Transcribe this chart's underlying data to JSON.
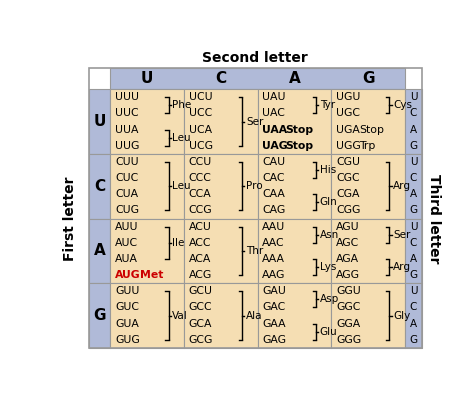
{
  "title_top": "Second letter",
  "title_left": "First letter",
  "title_right": "Third letter",
  "second_letters": [
    "U",
    "C",
    "A",
    "G"
  ],
  "first_letters": [
    "U",
    "C",
    "A",
    "G"
  ],
  "third_letters": [
    "U",
    "C",
    "A",
    "G"
  ],
  "bg_header": "#b0bad8",
  "bg_cell": "#f5deb3",
  "grid_color": "#999999",
  "red_color": "#cc0000",
  "cells": [
    {
      "row": 0,
      "col": 0,
      "lines": [
        {
          "codon": "UUU",
          "amino": "Phe",
          "bracket_top": true,
          "bracket_bottom": false,
          "bold": false,
          "red": false
        },
        {
          "codon": "UUC",
          "amino": "",
          "bracket_top": false,
          "bracket_bottom": true,
          "bold": false,
          "red": false
        },
        {
          "codon": "UUA",
          "amino": "Leu",
          "bracket_top": true,
          "bracket_bottom": false,
          "bold": false,
          "red": false
        },
        {
          "codon": "UUG",
          "amino": "",
          "bracket_top": false,
          "bracket_bottom": true,
          "bold": false,
          "red": false
        }
      ],
      "brackets": [
        [
          0,
          1,
          "Phe"
        ],
        [
          2,
          3,
          "Leu"
        ]
      ]
    },
    {
      "row": 0,
      "col": 1,
      "lines": [
        {
          "codon": "UCU",
          "amino": "",
          "bracket_top": false,
          "bracket_bottom": false,
          "bold": false,
          "red": false
        },
        {
          "codon": "UCC",
          "amino": "",
          "bracket_top": false,
          "bracket_bottom": false,
          "bold": false,
          "red": false
        },
        {
          "codon": "UCA",
          "amino": "Ser",
          "bracket_top": false,
          "bracket_bottom": false,
          "bold": false,
          "red": false
        },
        {
          "codon": "UCG",
          "amino": "",
          "bracket_top": false,
          "bracket_bottom": false,
          "bold": false,
          "red": false
        }
      ],
      "brackets": [
        [
          0,
          3,
          "Ser"
        ]
      ]
    },
    {
      "row": 0,
      "col": 2,
      "lines": [
        {
          "codon": "UAU",
          "amino": "Tyr",
          "bracket_top": true,
          "bracket_bottom": false,
          "bold": false,
          "red": false
        },
        {
          "codon": "UAC",
          "amino": "",
          "bracket_top": false,
          "bracket_bottom": true,
          "bold": false,
          "red": false
        },
        {
          "codon": "UAA",
          "amino": "Stop",
          "bracket_top": false,
          "bracket_bottom": false,
          "bold": true,
          "red": false
        },
        {
          "codon": "UAG",
          "amino": "Stop",
          "bracket_top": false,
          "bracket_bottom": false,
          "bold": true,
          "red": false
        }
      ],
      "brackets": [
        [
          0,
          1,
          "Tyr"
        ]
      ],
      "stop_lines": [
        2,
        3
      ]
    },
    {
      "row": 0,
      "col": 3,
      "lines": [
        {
          "codon": "UGU",
          "amino": "Cys",
          "bracket_top": true,
          "bracket_bottom": false,
          "bold": false,
          "red": false
        },
        {
          "codon": "UGC",
          "amino": "",
          "bracket_top": false,
          "bracket_bottom": true,
          "bold": false,
          "red": false
        },
        {
          "codon": "UGA",
          "amino": "Stop",
          "bracket_top": false,
          "bracket_bottom": false,
          "bold": false,
          "red": false
        },
        {
          "codon": "UGG",
          "amino": "Trp",
          "bracket_top": false,
          "bracket_bottom": false,
          "bold": false,
          "red": false
        }
      ],
      "brackets": [
        [
          0,
          1,
          "Cys"
        ]
      ],
      "inline_lines": [
        2,
        3
      ]
    },
    {
      "row": 1,
      "col": 0,
      "lines": [
        {
          "codon": "CUU",
          "amino": "",
          "bracket_top": false,
          "bracket_bottom": false,
          "bold": false,
          "red": false
        },
        {
          "codon": "CUC",
          "amino": "",
          "bracket_top": false,
          "bracket_bottom": false,
          "bold": false,
          "red": false
        },
        {
          "codon": "CUA",
          "amino": "Leu",
          "bracket_top": false,
          "bracket_bottom": false,
          "bold": false,
          "red": false
        },
        {
          "codon": "CUG",
          "amino": "",
          "bracket_top": false,
          "bracket_bottom": false,
          "bold": false,
          "red": false
        }
      ],
      "brackets": [
        [
          0,
          3,
          "Leu"
        ]
      ]
    },
    {
      "row": 1,
      "col": 1,
      "lines": [
        {
          "codon": "CCU",
          "amino": "",
          "bracket_top": false,
          "bracket_bottom": false,
          "bold": false,
          "red": false
        },
        {
          "codon": "CCC",
          "amino": "",
          "bracket_top": false,
          "bracket_bottom": false,
          "bold": false,
          "red": false
        },
        {
          "codon": "CCA",
          "amino": "Pro",
          "bracket_top": false,
          "bracket_bottom": false,
          "bold": false,
          "red": false
        },
        {
          "codon": "CCG",
          "amino": "",
          "bracket_top": false,
          "bracket_bottom": false,
          "bold": false,
          "red": false
        }
      ],
      "brackets": [
        [
          0,
          3,
          "Pro"
        ]
      ]
    },
    {
      "row": 1,
      "col": 2,
      "lines": [
        {
          "codon": "CAU",
          "amino": "His",
          "bracket_top": true,
          "bracket_bottom": false,
          "bold": false,
          "red": false
        },
        {
          "codon": "CAC",
          "amino": "",
          "bracket_top": false,
          "bracket_bottom": true,
          "bold": false,
          "red": false
        },
        {
          "codon": "CAA",
          "amino": "Gln",
          "bracket_top": true,
          "bracket_bottom": false,
          "bold": false,
          "red": false
        },
        {
          "codon": "CAG",
          "amino": "",
          "bracket_top": false,
          "bracket_bottom": true,
          "bold": false,
          "red": false
        }
      ],
      "brackets": [
        [
          0,
          1,
          "His"
        ],
        [
          2,
          3,
          "Gln"
        ]
      ]
    },
    {
      "row": 1,
      "col": 3,
      "lines": [
        {
          "codon": "CGU",
          "amino": "",
          "bracket_top": false,
          "bracket_bottom": false,
          "bold": false,
          "red": false
        },
        {
          "codon": "CGC",
          "amino": "",
          "bracket_top": false,
          "bracket_bottom": false,
          "bold": false,
          "red": false
        },
        {
          "codon": "CGA",
          "amino": "Arg",
          "bracket_top": false,
          "bracket_bottom": false,
          "bold": false,
          "red": false
        },
        {
          "codon": "CGG",
          "amino": "",
          "bracket_top": false,
          "bracket_bottom": false,
          "bold": false,
          "red": false
        }
      ],
      "brackets": [
        [
          0,
          3,
          "Arg"
        ]
      ]
    },
    {
      "row": 2,
      "col": 0,
      "lines": [
        {
          "codon": "AUU",
          "amino": "Ile",
          "bracket_top": true,
          "bracket_bottom": false,
          "bold": false,
          "red": false
        },
        {
          "codon": "AUC",
          "amino": "",
          "bracket_top": false,
          "bracket_bottom": false,
          "bold": false,
          "red": false
        },
        {
          "codon": "AUA",
          "amino": "",
          "bracket_top": false,
          "bracket_bottom": true,
          "bold": false,
          "red": false
        },
        {
          "codon": "AUG",
          "amino": "Met",
          "bracket_top": false,
          "bracket_bottom": false,
          "bold": true,
          "red": true
        }
      ],
      "brackets": [
        [
          0,
          2,
          "Ile"
        ]
      ],
      "aug_met": true
    },
    {
      "row": 2,
      "col": 1,
      "lines": [
        {
          "codon": "ACU",
          "amino": "",
          "bracket_top": false,
          "bracket_bottom": false,
          "bold": false,
          "red": false
        },
        {
          "codon": "ACC",
          "amino": "",
          "bracket_top": false,
          "bracket_bottom": false,
          "bold": false,
          "red": false
        },
        {
          "codon": "ACA",
          "amino": "Thr",
          "bracket_top": false,
          "bracket_bottom": false,
          "bold": false,
          "red": false
        },
        {
          "codon": "ACG",
          "amino": "",
          "bracket_top": false,
          "bracket_bottom": false,
          "bold": false,
          "red": false
        }
      ],
      "brackets": [
        [
          0,
          3,
          "Thr"
        ]
      ]
    },
    {
      "row": 2,
      "col": 2,
      "lines": [
        {
          "codon": "AAU",
          "amino": "Asn",
          "bracket_top": true,
          "bracket_bottom": false,
          "bold": false,
          "red": false
        },
        {
          "codon": "AAC",
          "amino": "",
          "bracket_top": false,
          "bracket_bottom": true,
          "bold": false,
          "red": false
        },
        {
          "codon": "AAA",
          "amino": "Lys",
          "bracket_top": true,
          "bracket_bottom": false,
          "bold": false,
          "red": false
        },
        {
          "codon": "AAG",
          "amino": "",
          "bracket_top": false,
          "bracket_bottom": true,
          "bold": false,
          "red": false
        }
      ],
      "brackets": [
        [
          0,
          1,
          "Asn"
        ],
        [
          2,
          3,
          "Lys"
        ]
      ]
    },
    {
      "row": 2,
      "col": 3,
      "lines": [
        {
          "codon": "AGU",
          "amino": "Ser",
          "bracket_top": true,
          "bracket_bottom": false,
          "bold": false,
          "red": false
        },
        {
          "codon": "AGC",
          "amino": "",
          "bracket_top": false,
          "bracket_bottom": true,
          "bold": false,
          "red": false
        },
        {
          "codon": "AGA",
          "amino": "Arg",
          "bracket_top": true,
          "bracket_bottom": false,
          "bold": false,
          "red": false
        },
        {
          "codon": "AGG",
          "amino": "",
          "bracket_top": false,
          "bracket_bottom": true,
          "bold": false,
          "red": false
        }
      ],
      "brackets": [
        [
          0,
          1,
          "Ser"
        ],
        [
          2,
          3,
          "Arg"
        ]
      ]
    },
    {
      "row": 3,
      "col": 0,
      "lines": [
        {
          "codon": "GUU",
          "amino": "",
          "bracket_top": false,
          "bracket_bottom": false,
          "bold": false,
          "red": false
        },
        {
          "codon": "GUC",
          "amino": "",
          "bracket_top": false,
          "bracket_bottom": false,
          "bold": false,
          "red": false
        },
        {
          "codon": "GUA",
          "amino": "Val",
          "bracket_top": false,
          "bracket_bottom": false,
          "bold": false,
          "red": false
        },
        {
          "codon": "GUG",
          "amino": "",
          "bracket_top": false,
          "bracket_bottom": false,
          "bold": false,
          "red": false
        }
      ],
      "brackets": [
        [
          0,
          3,
          "Val"
        ]
      ]
    },
    {
      "row": 3,
      "col": 1,
      "lines": [
        {
          "codon": "GCU",
          "amino": "",
          "bracket_top": false,
          "bracket_bottom": false,
          "bold": false,
          "red": false
        },
        {
          "codon": "GCC",
          "amino": "",
          "bracket_top": false,
          "bracket_bottom": false,
          "bold": false,
          "red": false
        },
        {
          "codon": "GCA",
          "amino": "Ala",
          "bracket_top": false,
          "bracket_bottom": false,
          "bold": false,
          "red": false
        },
        {
          "codon": "GCG",
          "amino": "",
          "bracket_top": false,
          "bracket_bottom": false,
          "bold": false,
          "red": false
        }
      ],
      "brackets": [
        [
          0,
          3,
          "Ala"
        ]
      ]
    },
    {
      "row": 3,
      "col": 2,
      "lines": [
        {
          "codon": "GAU",
          "amino": "Asp",
          "bracket_top": true,
          "bracket_bottom": false,
          "bold": false,
          "red": false
        },
        {
          "codon": "GAC",
          "amino": "",
          "bracket_top": false,
          "bracket_bottom": true,
          "bold": false,
          "red": false
        },
        {
          "codon": "GAA",
          "amino": "Glu",
          "bracket_top": true,
          "bracket_bottom": false,
          "bold": false,
          "red": false
        },
        {
          "codon": "GAG",
          "amino": "",
          "bracket_top": false,
          "bracket_bottom": true,
          "bold": false,
          "red": false
        }
      ],
      "brackets": [
        [
          0,
          1,
          "Asp"
        ],
        [
          2,
          3,
          "Glu"
        ]
      ]
    },
    {
      "row": 3,
      "col": 3,
      "lines": [
        {
          "codon": "GGU",
          "amino": "",
          "bracket_top": false,
          "bracket_bottom": false,
          "bold": false,
          "red": false
        },
        {
          "codon": "GGC",
          "amino": "",
          "bracket_top": false,
          "bracket_bottom": false,
          "bold": false,
          "red": false
        },
        {
          "codon": "GGA",
          "amino": "Gly",
          "bracket_top": false,
          "bracket_bottom": false,
          "bold": false,
          "red": false
        },
        {
          "codon": "GGG",
          "amino": "",
          "bracket_top": false,
          "bracket_bottom": false,
          "bold": false,
          "red": false
        }
      ],
      "brackets": [
        [
          0,
          3,
          "Gly"
        ]
      ]
    }
  ]
}
